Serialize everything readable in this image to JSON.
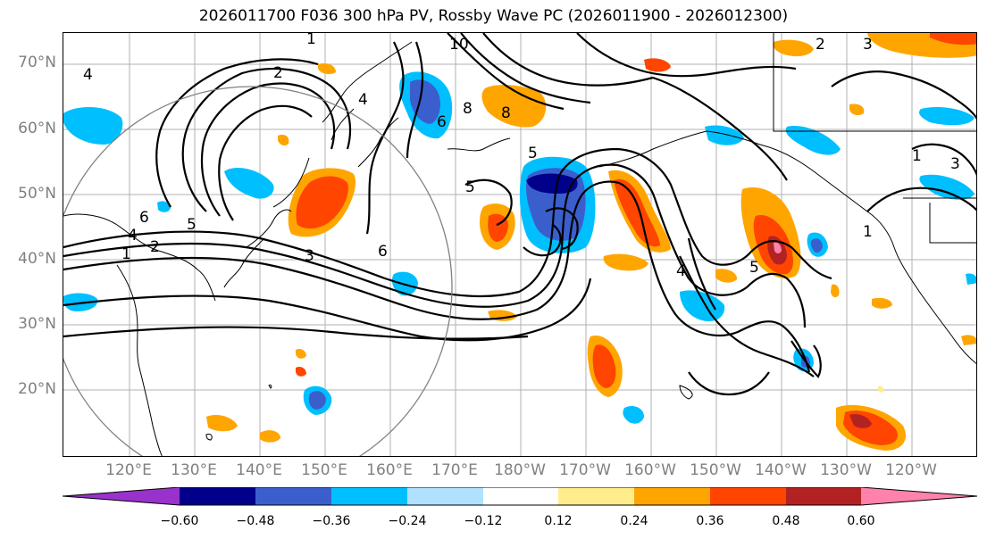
{
  "title": "2026011700 F036 300 hPa PV, Rossby Wave PC (2026011900 - 2026012300)",
  "map": {
    "lat_labels": [
      "70°N",
      "60°N",
      "50°N",
      "40°N",
      "30°N",
      "20°N"
    ],
    "lon_labels": [
      "120°E",
      "130°E",
      "140°E",
      "150°E",
      "160°E",
      "170°E",
      "180°W",
      "170°W",
      "160°W",
      "150°W",
      "140°W",
      "130°W",
      "120°W"
    ],
    "contour_labels": [
      "1",
      "4",
      "2",
      "10",
      "8",
      "4",
      "6",
      "8",
      "5",
      "5",
      "6",
      "5",
      "4",
      "2",
      "1",
      "6",
      "3",
      "4",
      "5",
      "2",
      "3",
      "1",
      "1",
      "3"
    ],
    "label_color": "#808080"
  },
  "colorbar": {
    "ticks": [
      "−0.60",
      "−0.48",
      "−0.36",
      "−0.24",
      "−0.12",
      "0.12",
      "0.24",
      "0.36",
      "0.48",
      "0.60"
    ],
    "colors": [
      "#9932CC",
      "#00008B",
      "#3A5FCD",
      "#00BFFF",
      "#B0E2FF",
      "#FFFFFF",
      "#FFEC8B",
      "#FFA500",
      "#FF4500",
      "#B22222",
      "#FF82AB"
    ]
  }
}
